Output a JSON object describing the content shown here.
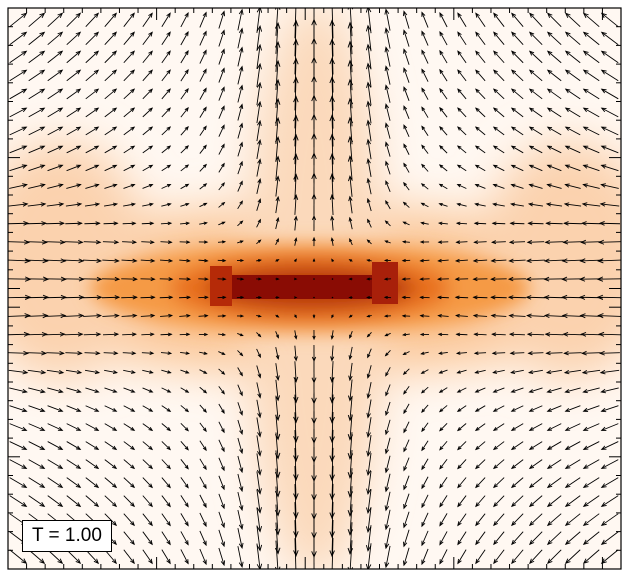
{
  "label": "T = 1.00"
}
